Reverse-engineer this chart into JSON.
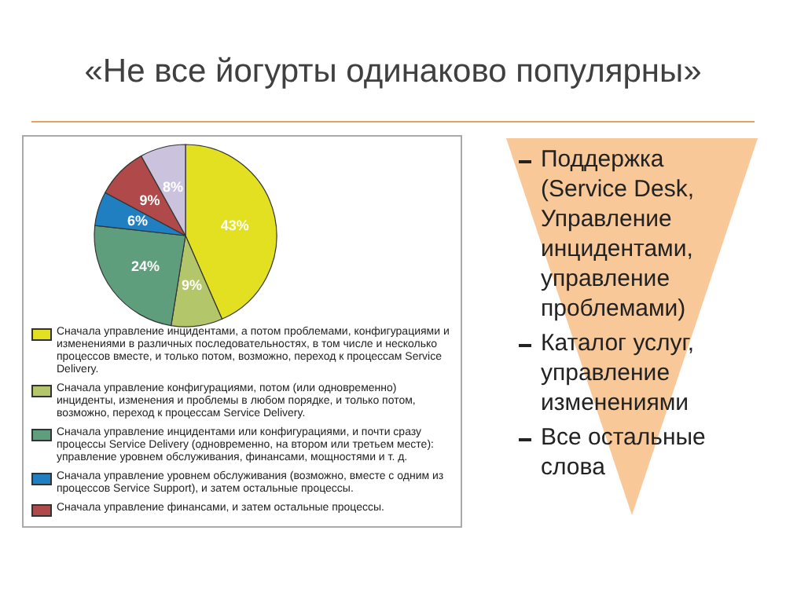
{
  "chart_data": {
    "type": "pie",
    "title": "«Не все йогурты одинаково популярны»",
    "categories": [
      "Сначала управление инцидентами, а потом проблемами, конфигурациями и изменениями в различных последовательностях, в том числе и несколько процессов вместе, и только потом, возможно, переход к процессам Service Delivery.",
      "Сначала управление конфигурациями, потом (или одновременно) инциденты, изменения и проблемы в любом порядке, и только потом, возможно, переход к процессам Service Delivery.",
      "Сначала управление инцидентами или конфигурациями, и почти сразу процессы Service Delivery (одновременно, на втором или третьем месте): управление уровнем обслуживания, финансами, мощностями и т. д.",
      "Сначала управление уровнем обслуживания (возможно, вместе с одним из процессов Service Support), и затем остальные процессы.",
      "Сначала управление финансами, и затем остальные процессы.",
      null
    ],
    "values": [
      43,
      9,
      24,
      6,
      9,
      8
    ],
    "value_labels": [
      "43%",
      "9%",
      "24%",
      "6%",
      "9%",
      "8%"
    ],
    "colors": [
      "#e2e021",
      "#b3c76a",
      "#5e9e7c",
      "#1f7fc1",
      "#b04a4a",
      "#cbc3de"
    ],
    "legend": "bottom",
    "annotations": [
      "Поддержка (Service Desk, Управление инцидентами, управление проблемами)",
      "Каталог услуг, управление изменениями",
      "Все остальные слова"
    ]
  }
}
